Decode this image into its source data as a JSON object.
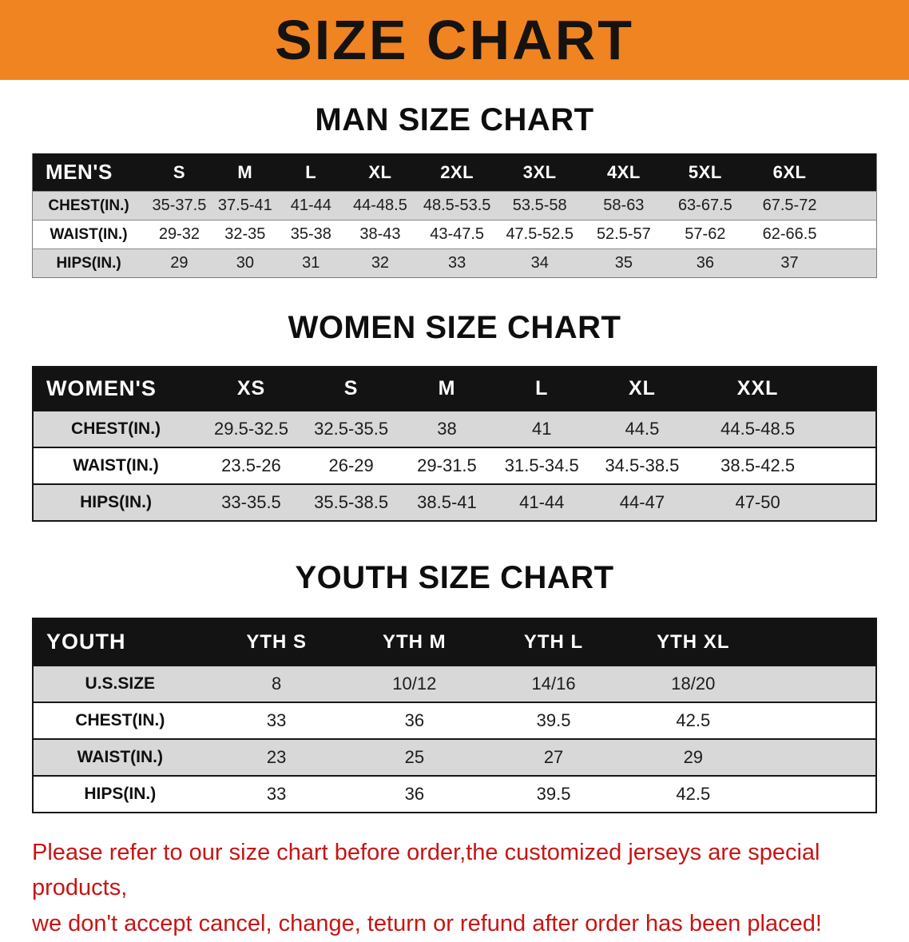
{
  "banner": {
    "title": "SIZE CHART"
  },
  "chart_data": [
    {
      "type": "table",
      "title": "MAN SIZE CHART",
      "columns": [
        "MEN'S",
        "S",
        "M",
        "L",
        "XL",
        "2XL",
        "3XL",
        "4XL",
        "5XL",
        "6XL"
      ],
      "rows": [
        [
          "CHEST(IN.)",
          "35-37.5",
          "37.5-41",
          "41-44",
          "44-48.5",
          "48.5-53.5",
          "53.5-58",
          "58-63",
          "63-67.5",
          "67.5-72"
        ],
        [
          "WAIST(IN.)",
          "29-32",
          "32-35",
          "35-38",
          "38-43",
          "43-47.5",
          "47.5-52.5",
          "52.5-57",
          "57-62",
          "62-66.5"
        ],
        [
          "HIPS(IN.)",
          "29",
          "30",
          "31",
          "32",
          "33",
          "34",
          "35",
          "36",
          "37"
        ]
      ]
    },
    {
      "type": "table",
      "title": "WOMEN SIZE CHART",
      "columns": [
        "WOMEN'S",
        "XS",
        "S",
        "M",
        "L",
        "XL",
        "XXL"
      ],
      "rows": [
        [
          "CHEST(IN.)",
          "29.5-32.5",
          "32.5-35.5",
          "38",
          "41",
          "44.5",
          "44.5-48.5"
        ],
        [
          "WAIST(IN.)",
          "23.5-26",
          "26-29",
          "29-31.5",
          "31.5-34.5",
          "34.5-38.5",
          "38.5-42.5"
        ],
        [
          "HIPS(IN.)",
          "33-35.5",
          "35.5-38.5",
          "38.5-41",
          "41-44",
          "44-47",
          "47-50"
        ]
      ]
    },
    {
      "type": "table",
      "title": "YOUTH SIZE CHART",
      "columns": [
        "YOUTH",
        "YTH S",
        "YTH M",
        "YTH L",
        "YTH XL"
      ],
      "rows": [
        [
          "U.S.SIZE",
          "8",
          "10/12",
          "14/16",
          "18/20"
        ],
        [
          "CHEST(IN.)",
          "33",
          "36",
          "39.5",
          "42.5"
        ],
        [
          "WAIST(IN.)",
          "23",
          "25",
          "27",
          "29"
        ],
        [
          "HIPS(IN.)",
          "33",
          "36",
          "39.5",
          "42.5"
        ]
      ]
    }
  ],
  "disclaimer": {
    "line1": "Please refer to our size chart before order,the customized jerseys are special products,",
    "line2": "we don't accept cancel, change, teturn or refund after order has been placed!"
  },
  "colors": {
    "banner_bg": "#f08421",
    "header_bg": "#131313",
    "row_alt_bg": "#d8d8d8",
    "disclaimer_red": "#c81414"
  }
}
